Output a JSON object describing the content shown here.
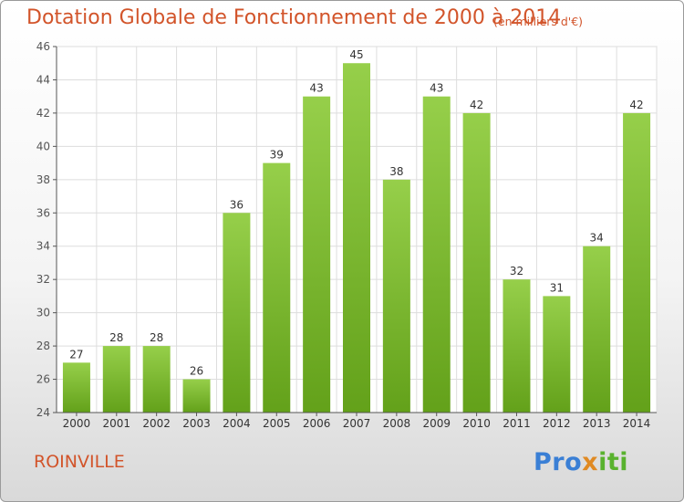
{
  "chart_data": {
    "type": "bar",
    "title": "Dotation Globale de Fonctionnement de 2000 à 2014",
    "subtitle": "(en milliers d'€)",
    "xlabel": "",
    "ylabel": "",
    "categories": [
      "2000",
      "2001",
      "2002",
      "2003",
      "2004",
      "2005",
      "2006",
      "2007",
      "2008",
      "2009",
      "2010",
      "2011",
      "2012",
      "2013",
      "2014"
    ],
    "values": [
      27,
      28,
      28,
      26,
      36,
      39,
      43,
      45,
      38,
      43,
      42,
      32,
      31,
      34,
      42
    ],
    "ylim": [
      24,
      46
    ],
    "yticks": [
      24,
      26,
      28,
      30,
      32,
      34,
      36,
      38,
      40,
      42,
      44,
      46
    ],
    "grid": true,
    "bar_color_top": "#96cf4a",
    "bar_color_bottom": "#63a11a"
  },
  "footer": {
    "commune": "ROINVILLE",
    "logo": {
      "part1": "Pro",
      "part2": "x",
      "part3": "iti"
    }
  },
  "colors": {
    "title": "#d2542a",
    "axis": "#555555",
    "grid": "#dddddd"
  }
}
